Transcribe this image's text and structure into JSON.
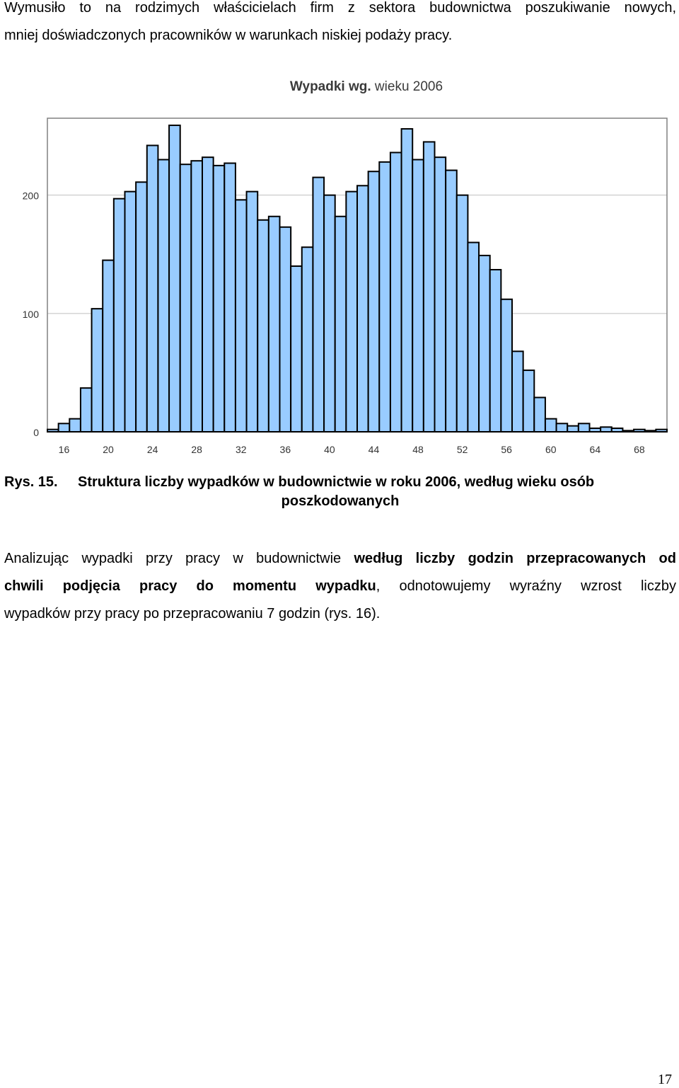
{
  "intro": {
    "line1": "Wymusiło to na rodzimych właścicielach firm z sektora budownictwa poszukiwanie nowych,",
    "line2": "mniej doświadczonych pracowników w warunkach niskiej podaży pracy."
  },
  "chart_data": {
    "type": "bar",
    "title": "Wypadki wg. wieku 2006",
    "title_bold_part": "Wypadki wg.",
    "title_rest": " wieku 2006",
    "xlabel": "",
    "ylabel": "",
    "x": [
      15,
      16,
      17,
      18,
      19,
      20,
      21,
      22,
      23,
      24,
      25,
      26,
      27,
      28,
      29,
      30,
      31,
      32,
      33,
      34,
      35,
      36,
      37,
      38,
      39,
      40,
      41,
      42,
      43,
      44,
      45,
      46,
      47,
      48,
      49,
      50,
      51,
      52,
      53,
      54,
      55,
      56,
      57,
      58,
      59,
      60,
      61,
      62,
      63,
      64,
      65,
      66,
      67,
      68,
      69,
      70
    ],
    "values": [
      2,
      7,
      11,
      37,
      104,
      145,
      197,
      203,
      211,
      242,
      230,
      259,
      226,
      229,
      232,
      225,
      227,
      196,
      203,
      179,
      182,
      173,
      140,
      156,
      215,
      200,
      182,
      203,
      208,
      220,
      228,
      236,
      256,
      230,
      245,
      232,
      221,
      200,
      160,
      149,
      137,
      112,
      68,
      52,
      29,
      11,
      7,
      5,
      7,
      3,
      4,
      3,
      1,
      2,
      1,
      2
    ],
    "ylim": [
      0,
      265
    ],
    "y_ticks": [
      "0",
      "100",
      "200"
    ],
    "x_tick_labels": [
      "16",
      "20",
      "24",
      "28",
      "32",
      "36",
      "40",
      "44",
      "48",
      "52",
      "56",
      "60",
      "64",
      "68"
    ],
    "bar_color": "#99ccff",
    "grid": true
  },
  "caption": {
    "label": "Rys. 15.",
    "line1": "Struktura liczby wypadków w budownictwie w roku 2006, według wieku osób",
    "line2": "poszkodowanych"
  },
  "body2": {
    "l1_plain": "Analizując wypadki przy pracy w budownictwie ",
    "l1_bold": "według liczby godzin przepracowanych od",
    "l2_bold": "chwili podjęcia pracy do momentu wypadku",
    "l2_plain": ", odnotowujemy wyraźny wzrost liczby",
    "l3": "wypadków przy pracy po przepracowaniu 7 godzin (rys. 16)."
  },
  "page_number": "17"
}
